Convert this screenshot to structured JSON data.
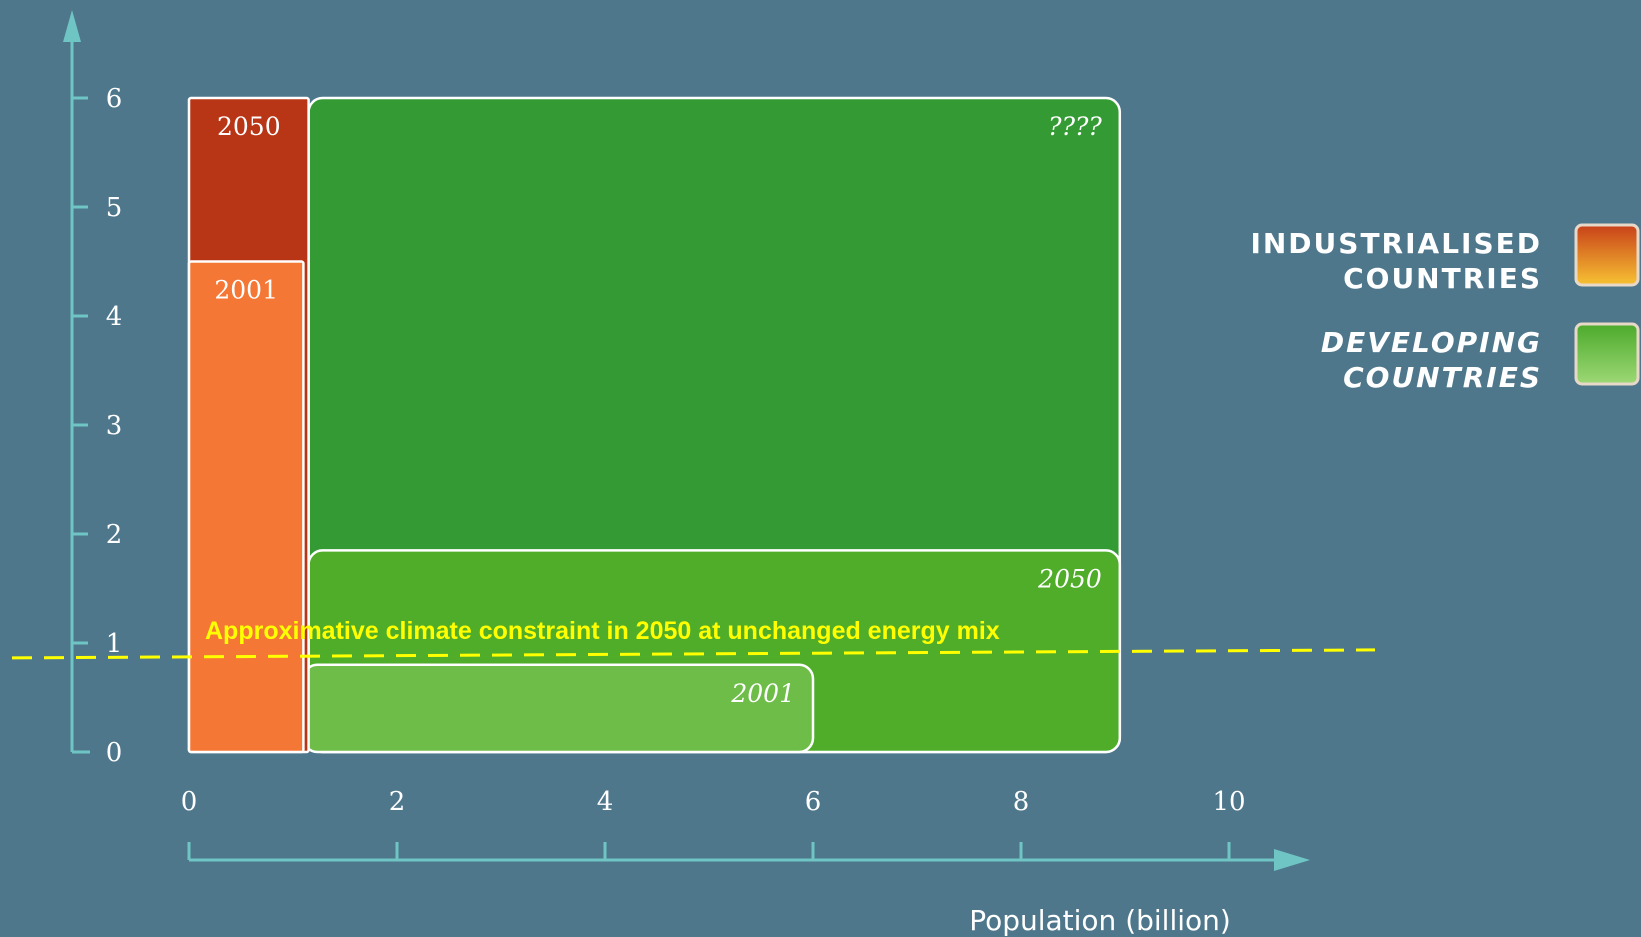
{
  "chart_data": {
    "type": "bar",
    "xlabel": "Population (billion)",
    "ylabel": "",
    "xlim": [
      0,
      10
    ],
    "ylim": [
      0,
      6
    ],
    "x_ticks": [
      0,
      2,
      4,
      6,
      8,
      10
    ],
    "y_ticks": [
      0,
      1,
      2,
      3,
      4,
      5,
      6
    ],
    "bars": [
      {
        "group": "developing",
        "label": "????",
        "x0": 1.15,
        "width": 7.8,
        "value": 6.0,
        "color": "#349b34",
        "label_italic": true
      },
      {
        "group": "developing",
        "label": "2050",
        "x0": 1.15,
        "width": 7.8,
        "value": 1.85,
        "color": "#4fad2a",
        "label_italic": true
      },
      {
        "group": "developing",
        "label": "2001",
        "x0": 1.1,
        "width": 4.9,
        "value": 0.8,
        "color": "#6dbd48",
        "label_italic": true
      },
      {
        "group": "industrialised",
        "label": "2050",
        "x0": 0,
        "width": 1.15,
        "value": 6.0,
        "color": "#b83516",
        "label_italic": false
      },
      {
        "group": "industrialised",
        "label": "2001",
        "x0": 0,
        "width": 1.1,
        "value": 4.5,
        "color": "#f47735",
        "label_italic": false
      }
    ],
    "constraint": {
      "value": 0.9,
      "label": "Approximative climate constraint in 2050 at unchanged energy mix",
      "color": "#ffff00"
    },
    "legend": {
      "placement": "right",
      "items": [
        {
          "line1": "INDUSTRIALISED",
          "line2": "COUNTRIES",
          "color_top": "#c84119",
          "color_bottom": "#f7c233",
          "italic": false
        },
        {
          "line1": "DEVELOPING",
          "line2": "COUNTRIES",
          "color_top": "#4caa2c",
          "color_bottom": "#9dd875",
          "italic": true
        }
      ]
    }
  }
}
